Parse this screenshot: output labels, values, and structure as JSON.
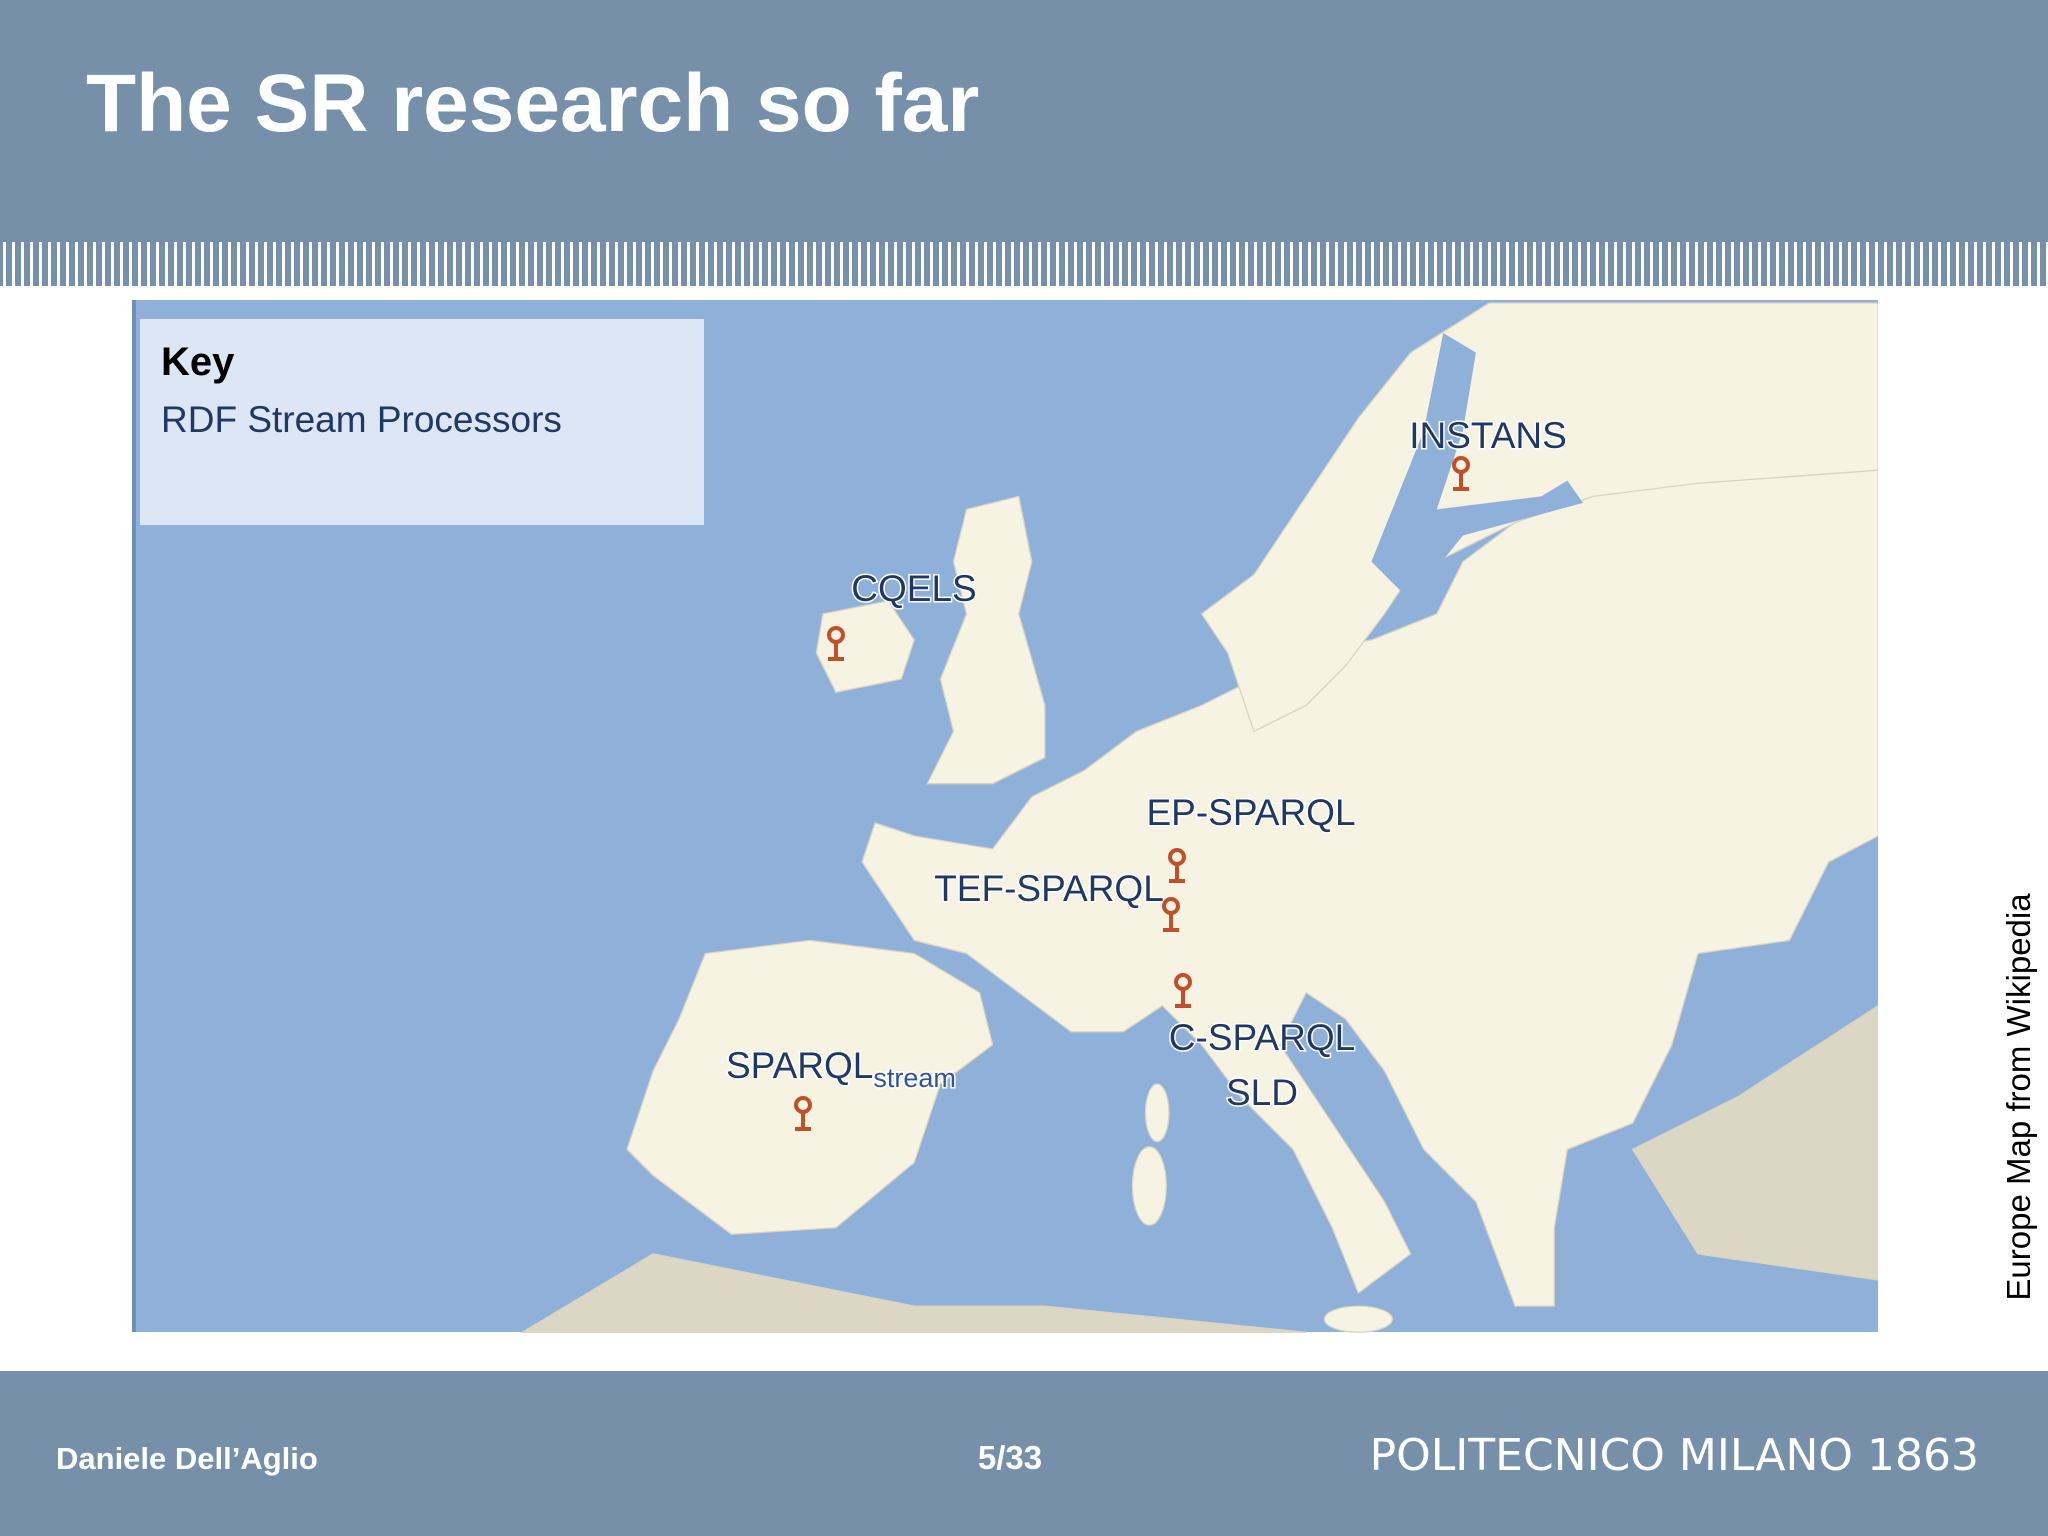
{
  "header": {
    "title": "The SR research so far"
  },
  "key": {
    "heading": "Key",
    "item": "RDF Stream Processors"
  },
  "map": {
    "labels": [
      {
        "text": "INSTANS"
      },
      {
        "text": "CQELS"
      },
      {
        "text": "EP-SPARQL"
      },
      {
        "text": "TEF-SPARQL"
      },
      {
        "text": "C-SPARQL"
      },
      {
        "text": "SLD"
      },
      {
        "text": "SPARQL",
        "subscript": "stream"
      }
    ],
    "credit": "Europe Map from Wikipedia"
  },
  "footer": {
    "author": "Daniele Dell’Aglio",
    "page": "5/33",
    "institution": "POLITECNICO MILANO 1863"
  }
}
